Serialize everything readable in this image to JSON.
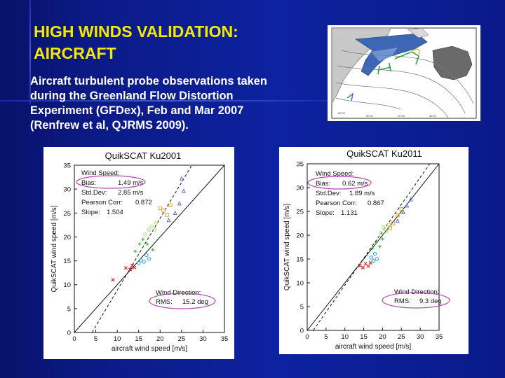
{
  "slide": {
    "title_line1": "HIGH WINDS VALIDATION:",
    "title_line2": "AIRCRAFT",
    "text_lines": [
      "Aircraft  turbulent probe observations taken",
      "during the Greenland Flow Distortion",
      "Experiment (GFDex), Feb and Mar 2007",
      "(Renfrew et al, QJRMS 2009)."
    ]
  },
  "colors": {
    "background": "#0d22a0",
    "title": "#f5e800",
    "text": "#ffffff"
  },
  "chart_data": [
    {
      "type": "scatter",
      "title": "QuikSCAT Ku2001",
      "xlabel": "aircraft wind speed [m/s]",
      "ylabel": "QuikSCAT wind speed [m/s]",
      "xlim": [
        0,
        35
      ],
      "ylim": [
        0,
        35
      ],
      "x_ticks": [
        "0",
        "5",
        "10",
        "15",
        "20",
        "25",
        "30",
        "35"
      ],
      "y_ticks": [
        "0",
        "5",
        "10",
        "15",
        "20",
        "25",
        "30",
        "35"
      ],
      "stats": {
        "header": "Wind Speed:",
        "bias_label": "Bias:",
        "bias": "1.49 m/s",
        "std_label": "Std.Dev:",
        "std": "2.85 m/s",
        "corr_label": "Pearson Corr:",
        "corr": "0.872",
        "slope_label": "Slope:",
        "slope": "1.504"
      },
      "direction": {
        "header": "Wind Direction:",
        "rms_label": "RMS:",
        "rms": "15.2 deg"
      },
      "fit_slope": 1.504,
      "fit_intercept": -6.2,
      "points": [
        {
          "color": "#e01818",
          "x": 9,
          "y": 11,
          "m": "x"
        },
        {
          "color": "#e01818",
          "x": 12,
          "y": 13.5,
          "m": "x"
        },
        {
          "color": "#e01818",
          "x": 13,
          "y": 13.2,
          "m": "x"
        },
        {
          "color": "#e01818",
          "x": 13.5,
          "y": 14,
          "m": "x"
        },
        {
          "color": "#e01818",
          "x": 14,
          "y": 13.6,
          "m": "x"
        },
        {
          "color": "#2aa0e0",
          "x": 15,
          "y": 14.5,
          "m": "o"
        },
        {
          "color": "#2aa0e0",
          "x": 15.6,
          "y": 15.1,
          "m": "o"
        },
        {
          "color": "#2aa0e0",
          "x": 16.2,
          "y": 14.8,
          "m": "o"
        },
        {
          "color": "#2aa0e0",
          "x": 16.8,
          "y": 16.2,
          "m": "o"
        },
        {
          "color": "#2aa0e0",
          "x": 17.4,
          "y": 15.4,
          "m": "o"
        },
        {
          "color": "#20b020",
          "x": 14.2,
          "y": 17,
          "m": "+"
        },
        {
          "color": "#20b020",
          "x": 15.2,
          "y": 18.5,
          "m": "+"
        },
        {
          "color": "#20b020",
          "x": 16,
          "y": 19.5,
          "m": "+"
        },
        {
          "color": "#20b020",
          "x": 17,
          "y": 18.5,
          "m": "+"
        },
        {
          "color": "#20b020",
          "x": 18.3,
          "y": 17.3,
          "m": "+"
        },
        {
          "color": "#a8e070",
          "x": 16.5,
          "y": 20.5,
          "m": "o"
        },
        {
          "color": "#a8e070",
          "x": 17.4,
          "y": 21.5,
          "m": "o"
        },
        {
          "color": "#a8e070",
          "x": 18,
          "y": 22.2,
          "m": "o"
        },
        {
          "color": "#a8e070",
          "x": 18.7,
          "y": 21.5,
          "m": "o"
        },
        {
          "color": "#a8e070",
          "x": 19,
          "y": 23,
          "m": "o"
        },
        {
          "color": "#e0a040",
          "x": 20,
          "y": 26,
          "m": "s"
        },
        {
          "color": "#e0a040",
          "x": 20.8,
          "y": 25.5,
          "m": "s"
        },
        {
          "color": "#e0a040",
          "x": 21.6,
          "y": 24.6,
          "m": "s"
        },
        {
          "color": "#e0a040",
          "x": 22.4,
          "y": 26.6,
          "m": "s"
        },
        {
          "color": "#6070d0",
          "x": 22,
          "y": 23.5,
          "m": "t"
        },
        {
          "color": "#6070d0",
          "x": 23.5,
          "y": 25,
          "m": "t"
        },
        {
          "color": "#6070d0",
          "x": 24.5,
          "y": 27,
          "m": "t"
        },
        {
          "color": "#6070d0",
          "x": 25.5,
          "y": 29.6,
          "m": "t"
        },
        {
          "color": "#6070d0",
          "x": 25,
          "y": 32.2,
          "m": "t"
        }
      ]
    },
    {
      "type": "scatter",
      "title": "QuikSCAT Ku2011",
      "xlabel": "aircraft wind speed [m/s]",
      "ylabel": "QuikSCAT wind speed [m/s]",
      "xlim": [
        0,
        35
      ],
      "ylim": [
        0,
        35
      ],
      "x_ticks": [
        "0",
        "5",
        "10",
        "15",
        "20",
        "25",
        "30",
        "35"
      ],
      "y_ticks": [
        "0",
        "5",
        "10",
        "15",
        "20",
        "25",
        "30",
        "35"
      ],
      "stats": {
        "header": "Wind Speed:",
        "bias_label": "Bias:",
        "bias": "0.62 m/s",
        "std_label": "Std.Dev:",
        "std": "1.89 m/s",
        "corr_label": "Pearson Corr:",
        "corr": "0.867",
        "slope_label": "Slope:",
        "slope": "1.131"
      },
      "direction": {
        "header": "Wind Direction:",
        "rms_label": "RMS:",
        "rms": "9.3 deg"
      },
      "fit_slope": 1.131,
      "fit_intercept": -1.8,
      "points": [
        {
          "color": "#e01818",
          "x": 14,
          "y": 13.6,
          "m": "x"
        },
        {
          "color": "#e01818",
          "x": 14.8,
          "y": 13.2,
          "m": "x"
        },
        {
          "color": "#e01818",
          "x": 15.5,
          "y": 14,
          "m": "x"
        },
        {
          "color": "#e01818",
          "x": 16.2,
          "y": 13.5,
          "m": "x"
        },
        {
          "color": "#e01818",
          "x": 16.8,
          "y": 14.2,
          "m": "x"
        },
        {
          "color": "#2aa0e0",
          "x": 17,
          "y": 15.3,
          "m": "o"
        },
        {
          "color": "#2aa0e0",
          "x": 17.6,
          "y": 14.6,
          "m": "o"
        },
        {
          "color": "#2aa0e0",
          "x": 18,
          "y": 16.1,
          "m": "o"
        },
        {
          "color": "#2aa0e0",
          "x": 18.5,
          "y": 15,
          "m": "o"
        },
        {
          "color": "#20b020",
          "x": 17.4,
          "y": 17.3,
          "m": "+"
        },
        {
          "color": "#20b020",
          "x": 18.3,
          "y": 18.5,
          "m": "+"
        },
        {
          "color": "#20b020",
          "x": 19.3,
          "y": 17.6,
          "m": "+"
        },
        {
          "color": "#20b020",
          "x": 20,
          "y": 19.2,
          "m": "+"
        },
        {
          "color": "#a8e070",
          "x": 19.5,
          "y": 20.5,
          "m": "o"
        },
        {
          "color": "#a8e070",
          "x": 20.3,
          "y": 21.6,
          "m": "o"
        },
        {
          "color": "#a8e070",
          "x": 21,
          "y": 20.8,
          "m": "o"
        },
        {
          "color": "#a8e070",
          "x": 21.7,
          "y": 22.2,
          "m": "o"
        },
        {
          "color": "#e0a040",
          "x": 22,
          "y": 21.5,
          "m": "s"
        },
        {
          "color": "#e0a040",
          "x": 22.8,
          "y": 22.5,
          "m": "s"
        },
        {
          "color": "#e0a040",
          "x": 24,
          "y": 24.2,
          "m": "s"
        },
        {
          "color": "#e0a040",
          "x": 25,
          "y": 25.5,
          "m": "s"
        },
        {
          "color": "#6070d0",
          "x": 24,
          "y": 23,
          "m": "t"
        },
        {
          "color": "#6070d0",
          "x": 25.5,
          "y": 24.8,
          "m": "t"
        },
        {
          "color": "#6070d0",
          "x": 26.5,
          "y": 26.2,
          "m": "t"
        },
        {
          "color": "#6070d0",
          "x": 27.5,
          "y": 27.5,
          "m": "t"
        }
      ]
    }
  ]
}
